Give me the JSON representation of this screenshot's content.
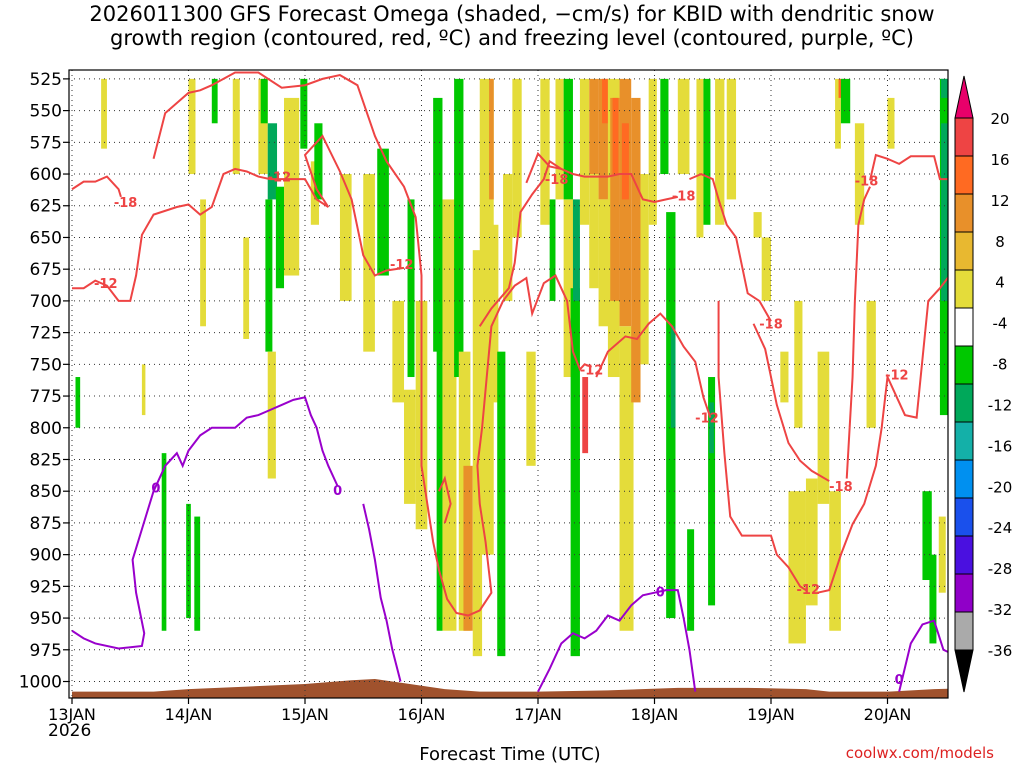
{
  "title": "2026011300 GFS Forecast Omega (shaded, −cm/s) for KBID with dendritic snow\ngrowth region (contoured, red, ºC) and freezing level (contoured, purple, ºC)",
  "credit": "coolwx.com/models",
  "chart_data": {
    "type": "heatmap",
    "xlabel": "Forecast Time (UTC)",
    "x_year_label": "2026",
    "x_ticks": [
      "13JAN",
      "14JAN",
      "15JAN",
      "16JAN",
      "17JAN",
      "18JAN",
      "19JAN",
      "20JAN"
    ],
    "x_range_days": [
      0,
      7.75
    ],
    "y_ticks": [
      525,
      550,
      575,
      600,
      625,
      650,
      675,
      700,
      725,
      750,
      775,
      800,
      825,
      850,
      875,
      900,
      925,
      950,
      975,
      1000
    ],
    "y_range_hpa": [
      518,
      1013
    ],
    "grid": true,
    "colorbar": {
      "labels": [
        "20",
        "16",
        "12",
        "8",
        "4",
        "-4",
        "-8",
        "-12",
        "-16",
        "-20",
        "-24",
        "-28",
        "-32",
        "-36"
      ],
      "colors": [
        "#e8006a",
        "#ee4444",
        "#ff6a22",
        "#e8902a",
        "#e8b830",
        "#e4dc3a",
        "#ffffff",
        "#00c800",
        "#00a85a",
        "#14b0a8",
        "#0090f0",
        "#1a50ec",
        "#4a10e0",
        "#9000c8",
        "#aaaaaa",
        "#000000"
      ]
    },
    "shaded_omega": [
      {
        "x0": 0.03,
        "x1": 0.07,
        "p0": 760,
        "p1": 800,
        "v": -8
      },
      {
        "x0": 0.25,
        "x1": 0.3,
        "p0": 525,
        "p1": 580,
        "v": 4
      },
      {
        "x0": 0.6,
        "x1": 0.63,
        "p0": 750,
        "p1": 790,
        "v": 4
      },
      {
        "x0": 0.77,
        "x1": 0.81,
        "p0": 820,
        "p1": 960,
        "v": -8
      },
      {
        "x0": 0.98,
        "x1": 1.02,
        "p0": 860,
        "p1": 950,
        "v": -8
      },
      {
        "x0": 1.05,
        "x1": 1.1,
        "p0": 870,
        "p1": 960,
        "v": -8
      },
      {
        "x0": 1.0,
        "x1": 1.06,
        "p0": 525,
        "p1": 600,
        "v": 4
      },
      {
        "x0": 1.1,
        "x1": 1.15,
        "p0": 620,
        "p1": 720,
        "v": 4
      },
      {
        "x0": 1.2,
        "x1": 1.25,
        "p0": 525,
        "p1": 560,
        "v": -8
      },
      {
        "x0": 1.38,
        "x1": 1.44,
        "p0": 525,
        "p1": 600,
        "v": 4
      },
      {
        "x0": 1.47,
        "x1": 1.52,
        "p0": 650,
        "p1": 730,
        "v": 4
      },
      {
        "x0": 1.6,
        "x1": 1.68,
        "p0": 525,
        "p1": 600,
        "v": 4
      },
      {
        "x0": 1.62,
        "x1": 1.68,
        "p0": 525,
        "p1": 560,
        "v": -8
      },
      {
        "x0": 1.68,
        "x1": 1.76,
        "p0": 560,
        "p1": 620,
        "v": -12
      },
      {
        "x0": 1.66,
        "x1": 1.72,
        "p0": 620,
        "p1": 740,
        "v": -8
      },
      {
        "x0": 1.68,
        "x1": 1.75,
        "p0": 740,
        "p1": 840,
        "v": 4
      },
      {
        "x0": 1.75,
        "x1": 1.82,
        "p0": 610,
        "p1": 690,
        "v": -8
      },
      {
        "x0": 1.82,
        "x1": 1.95,
        "p0": 540,
        "p1": 680,
        "v": 4
      },
      {
        "x0": 1.96,
        "x1": 2.02,
        "p0": 525,
        "p1": 580,
        "v": -8
      },
      {
        "x0": 2.05,
        "x1": 2.12,
        "p0": 590,
        "p1": 640,
        "v": 4
      },
      {
        "x0": 2.08,
        "x1": 2.15,
        "p0": 560,
        "p1": 620,
        "v": -8
      },
      {
        "x0": 2.3,
        "x1": 2.4,
        "p0": 600,
        "p1": 700,
        "v": 4
      },
      {
        "x0": 2.5,
        "x1": 2.6,
        "p0": 600,
        "p1": 740,
        "v": 4
      },
      {
        "x0": 2.62,
        "x1": 2.72,
        "p0": 580,
        "p1": 680,
        "v": -8
      },
      {
        "x0": 2.75,
        "x1": 2.85,
        "p0": 700,
        "p1": 780,
        "v": 4
      },
      {
        "x0": 2.85,
        "x1": 2.95,
        "p0": 770,
        "p1": 860,
        "v": 4
      },
      {
        "x0": 2.88,
        "x1": 2.94,
        "p0": 620,
        "p1": 760,
        "v": -8
      },
      {
        "x0": 2.95,
        "x1": 3.05,
        "p0": 700,
        "p1": 880,
        "v": 4
      },
      {
        "x0": 3.1,
        "x1": 3.18,
        "p0": 540,
        "p1": 740,
        "v": -8
      },
      {
        "x0": 3.13,
        "x1": 3.18,
        "p0": 700,
        "p1": 960,
        "v": -8
      },
      {
        "x0": 3.18,
        "x1": 3.3,
        "p0": 620,
        "p1": 960,
        "v": 4
      },
      {
        "x0": 3.28,
        "x1": 3.36,
        "p0": 525,
        "p1": 760,
        "v": -8
      },
      {
        "x0": 3.32,
        "x1": 3.42,
        "p0": 740,
        "p1": 960,
        "v": 4
      },
      {
        "x0": 3.36,
        "x1": 3.44,
        "p0": 830,
        "p1": 960,
        "v": 8
      },
      {
        "x0": 3.44,
        "x1": 3.52,
        "p0": 660,
        "p1": 980,
        "v": 4
      },
      {
        "x0": 3.5,
        "x1": 3.62,
        "p0": 525,
        "p1": 900,
        "v": 4
      },
      {
        "x0": 3.58,
        "x1": 3.62,
        "p0": 525,
        "p1": 620,
        "v": 8
      },
      {
        "x0": 3.6,
        "x1": 3.66,
        "p0": 640,
        "p1": 780,
        "v": 4
      },
      {
        "x0": 3.65,
        "x1": 3.72,
        "p0": 740,
        "p1": 980,
        "v": -8
      },
      {
        "x0": 3.7,
        "x1": 3.78,
        "p0": 600,
        "p1": 700,
        "v": 4
      },
      {
        "x0": 3.78,
        "x1": 3.86,
        "p0": 525,
        "p1": 650,
        "v": 4
      },
      {
        "x0": 3.9,
        "x1": 3.98,
        "p0": 740,
        "p1": 830,
        "v": 4
      },
      {
        "x0": 4.02,
        "x1": 4.1,
        "p0": 525,
        "p1": 640,
        "v": 4
      },
      {
        "x0": 4.1,
        "x1": 4.15,
        "p0": 620,
        "p1": 700,
        "v": -8
      },
      {
        "x0": 4.15,
        "x1": 4.22,
        "p0": 525,
        "p1": 620,
        "v": 4
      },
      {
        "x0": 4.22,
        "x1": 4.3,
        "p0": 525,
        "p1": 620,
        "v": -8
      },
      {
        "x0": 4.22,
        "x1": 4.32,
        "p0": 620,
        "p1": 760,
        "v": 4
      },
      {
        "x0": 4.28,
        "x1": 4.36,
        "p0": 690,
        "p1": 980,
        "v": -8
      },
      {
        "x0": 4.3,
        "x1": 4.36,
        "p0": 620,
        "p1": 700,
        "v": -12
      },
      {
        "x0": 4.36,
        "x1": 4.44,
        "p0": 525,
        "p1": 640,
        "v": 4
      },
      {
        "x0": 4.38,
        "x1": 4.43,
        "p0": 760,
        "p1": 820,
        "v": 16
      },
      {
        "x0": 4.44,
        "x1": 4.52,
        "p0": 525,
        "p1": 600,
        "v": 8
      },
      {
        "x0": 4.44,
        "x1": 4.52,
        "p0": 600,
        "p1": 690,
        "v": 4
      },
      {
        "x0": 4.52,
        "x1": 4.62,
        "p0": 525,
        "p1": 620,
        "v": 8
      },
      {
        "x0": 4.52,
        "x1": 4.62,
        "p0": 620,
        "p1": 720,
        "v": 4
      },
      {
        "x0": 4.55,
        "x1": 4.6,
        "p0": 525,
        "p1": 560,
        "v": 12
      },
      {
        "x0": 4.6,
        "x1": 4.7,
        "p0": 525,
        "p1": 760,
        "v": 4
      },
      {
        "x0": 4.62,
        "x1": 4.7,
        "p0": 540,
        "p1": 700,
        "v": 8
      },
      {
        "x0": 4.64,
        "x1": 4.69,
        "p0": 540,
        "p1": 600,
        "v": 12
      },
      {
        "x0": 4.7,
        "x1": 4.8,
        "p0": 525,
        "p1": 720,
        "v": 8
      },
      {
        "x0": 4.72,
        "x1": 4.78,
        "p0": 560,
        "p1": 620,
        "v": 12
      },
      {
        "x0": 4.7,
        "x1": 4.82,
        "p0": 720,
        "p1": 960,
        "v": 4
      },
      {
        "x0": 4.8,
        "x1": 4.88,
        "p0": 540,
        "p1": 780,
        "v": 8
      },
      {
        "x0": 4.88,
        "x1": 4.95,
        "p0": 600,
        "p1": 750,
        "v": 4
      },
      {
        "x0": 4.95,
        "x1": 5.02,
        "p0": 525,
        "p1": 640,
        "v": 4
      },
      {
        "x0": 5.05,
        "x1": 5.12,
        "p0": 525,
        "p1": 600,
        "v": -8
      },
      {
        "x0": 5.1,
        "x1": 5.18,
        "p0": 630,
        "p1": 950,
        "v": -8
      },
      {
        "x0": 5.14,
        "x1": 5.18,
        "p0": 720,
        "p1": 800,
        "v": -12
      },
      {
        "x0": 5.2,
        "x1": 5.3,
        "p0": 525,
        "p1": 600,
        "v": 4
      },
      {
        "x0": 5.28,
        "x1": 5.34,
        "p0": 880,
        "p1": 960,
        "v": -8
      },
      {
        "x0": 5.36,
        "x1": 5.42,
        "p0": 525,
        "p1": 650,
        "v": 4
      },
      {
        "x0": 5.42,
        "x1": 5.48,
        "p0": 525,
        "p1": 640,
        "v": -8
      },
      {
        "x0": 5.46,
        "x1": 5.52,
        "p0": 760,
        "p1": 940,
        "v": -8
      },
      {
        "x0": 5.47,
        "x1": 5.51,
        "p0": 780,
        "p1": 820,
        "v": -12
      },
      {
        "x0": 5.52,
        "x1": 5.6,
        "p0": 525,
        "p1": 640,
        "v": 4
      },
      {
        "x0": 5.62,
        "x1": 5.7,
        "p0": 525,
        "p1": 620,
        "v": 4
      },
      {
        "x0": 5.85,
        "x1": 5.92,
        "p0": 630,
        "p1": 650,
        "v": 4
      },
      {
        "x0": 5.92,
        "x1": 6.0,
        "p0": 650,
        "p1": 700,
        "v": 4
      },
      {
        "x0": 6.08,
        "x1": 6.15,
        "p0": 740,
        "p1": 780,
        "v": 4
      },
      {
        "x0": 6.15,
        "x1": 6.3,
        "p0": 850,
        "p1": 970,
        "v": 4
      },
      {
        "x0": 6.2,
        "x1": 6.27,
        "p0": 700,
        "p1": 800,
        "v": 4
      },
      {
        "x0": 6.3,
        "x1": 6.4,
        "p0": 840,
        "p1": 940,
        "v": 4
      },
      {
        "x0": 6.4,
        "x1": 6.5,
        "p0": 740,
        "p1": 860,
        "v": 4
      },
      {
        "x0": 6.5,
        "x1": 6.6,
        "p0": 850,
        "p1": 960,
        "v": 4
      },
      {
        "x0": 6.55,
        "x1": 6.6,
        "p0": 525,
        "p1": 580,
        "v": 4
      },
      {
        "x0": 6.58,
        "x1": 6.64,
        "p0": 525,
        "p1": 540,
        "v": 12
      },
      {
        "x0": 6.6,
        "x1": 6.68,
        "p0": 525,
        "p1": 560,
        "v": -8
      },
      {
        "x0": 6.72,
        "x1": 6.8,
        "p0": 560,
        "p1": 640,
        "v": 4
      },
      {
        "x0": 6.82,
        "x1": 6.9,
        "p0": 700,
        "p1": 800,
        "v": 4
      },
      {
        "x0": 7.0,
        "x1": 7.06,
        "p0": 540,
        "p1": 580,
        "v": 4
      },
      {
        "x0": 7.3,
        "x1": 7.38,
        "p0": 850,
        "p1": 920,
        "v": -8
      },
      {
        "x0": 7.36,
        "x1": 7.42,
        "p0": 900,
        "p1": 970,
        "v": -8
      },
      {
        "x0": 7.44,
        "x1": 7.5,
        "p0": 870,
        "p1": 930,
        "v": 4
      },
      {
        "x0": 7.45,
        "x1": 7.54,
        "p0": 525,
        "p1": 790,
        "v": -8
      },
      {
        "x0": 7.46,
        "x1": 7.52,
        "p0": 525,
        "p1": 540,
        "v": -12
      },
      {
        "x0": 7.46,
        "x1": 7.52,
        "p0": 560,
        "p1": 700,
        "v": -12
      }
    ],
    "snow_growth_contours": {
      "color": "#ee4444",
      "labels": [
        {
          "text": "-18",
          "x": 0.46,
          "p": 622
        },
        {
          "text": "-12",
          "x": 0.29,
          "p": 686
        },
        {
          "text": "-12",
          "x": 1.78,
          "p": 602
        },
        {
          "text": "-12",
          "x": 2.83,
          "p": 671
        },
        {
          "text": "-18",
          "x": 4.16,
          "p": 604
        },
        {
          "text": "-12",
          "x": 4.46,
          "p": 754
        },
        {
          "text": "-18",
          "x": 5.25,
          "p": 617
        },
        {
          "text": "-12",
          "x": 5.45,
          "p": 792
        },
        {
          "text": "-18",
          "x": 6.0,
          "p": 718
        },
        {
          "text": "-18",
          "x": 6.6,
          "p": 846
        },
        {
          "text": "-12",
          "x": 6.32,
          "p": 927
        },
        {
          "text": "-18",
          "x": 6.82,
          "p": 605
        },
        {
          "text": "-12",
          "x": 7.08,
          "p": 758
        }
      ]
    },
    "freezing_level_contours": {
      "color": "#9900cc",
      "labels": [
        {
          "text": "0",
          "x": 0.72,
          "p": 847
        },
        {
          "text": "0",
          "x": 2.28,
          "p": 849
        },
        {
          "text": "0",
          "x": 5.05,
          "p": 929
        },
        {
          "text": "0",
          "x": 7.1,
          "p": 998
        }
      ]
    }
  }
}
